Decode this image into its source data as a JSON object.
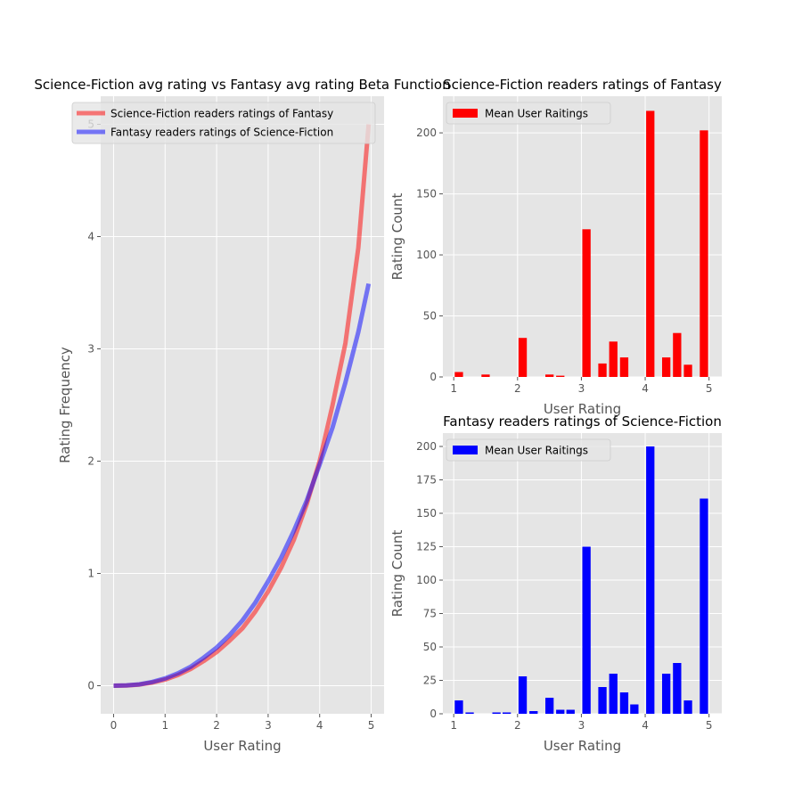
{
  "chart_data": [
    {
      "type": "line",
      "title": "Science-Fiction avg rating vs Fantasy avg rating Beta Function",
      "xlabel": "User Rating",
      "ylabel": "Rating Frequency",
      "xlim": [
        -0.25,
        5.25
      ],
      "ylim": [
        -0.25,
        5.25
      ],
      "xticks": [
        0,
        1,
        2,
        3,
        4,
        5
      ],
      "yticks": [
        0,
        1,
        2,
        3,
        4,
        5
      ],
      "grid": true,
      "legend": "top-right",
      "x": [
        0,
        0.25,
        0.5,
        0.75,
        1,
        1.25,
        1.5,
        1.75,
        2,
        2.25,
        2.5,
        2.75,
        3,
        3.25,
        3.5,
        3.75,
        4,
        4.25,
        4.5,
        4.75,
        4.95
      ],
      "series": [
        {
          "name": "Science-Fiction readers ratings of Fantasy",
          "color": "#ff0000",
          "values": [
            0,
            0.002,
            0.01,
            0.028,
            0.055,
            0.095,
            0.15,
            0.22,
            0.3,
            0.4,
            0.51,
            0.66,
            0.84,
            1.05,
            1.3,
            1.62,
            2.0,
            2.5,
            3.05,
            3.9,
            5.0
          ]
        },
        {
          "name": "Fantasy readers ratings of Science-Fiction",
          "color": "#0000ff",
          "values": [
            0,
            0.003,
            0.012,
            0.033,
            0.065,
            0.11,
            0.17,
            0.25,
            0.34,
            0.45,
            0.58,
            0.74,
            0.93,
            1.14,
            1.38,
            1.65,
            1.97,
            2.3,
            2.7,
            3.15,
            3.58
          ]
        }
      ]
    },
    {
      "type": "bar",
      "title": "Science-Fiction readers ratings of Fantasy",
      "xlabel": "User Rating",
      "ylabel": "Rating Count",
      "xlim": [
        0.83,
        5.2
      ],
      "ylim": [
        0,
        230
      ],
      "xticks": [
        1,
        2,
        3,
        4,
        5
      ],
      "yticks": [
        0,
        50,
        100,
        150,
        200
      ],
      "grid": true,
      "legend": "top-left",
      "series": [
        {
          "name": "Mean User Raitings",
          "color": "#ff0000"
        }
      ],
      "x": [
        1.08,
        1.5,
        2.08,
        2.5,
        2.67,
        3.08,
        3.33,
        3.5,
        3.67,
        4.08,
        4.33,
        4.5,
        4.67,
        4.92
      ],
      "values": [
        4,
        2,
        32,
        2,
        1,
        121,
        11,
        29,
        16,
        218,
        16,
        36,
        10,
        202
      ]
    },
    {
      "type": "bar",
      "title": "Fantasy readers ratings of Science-Fiction",
      "xlabel": "User Rating",
      "ylabel": "Rating Count",
      "xlim": [
        0.83,
        5.2
      ],
      "ylim": [
        0,
        210
      ],
      "xticks": [
        1,
        2,
        3,
        4,
        5
      ],
      "yticks": [
        0,
        25,
        50,
        75,
        100,
        125,
        150,
        175,
        200
      ],
      "grid": true,
      "legend": "top-left",
      "series": [
        {
          "name": "Mean User Raitings",
          "color": "#0000ff"
        }
      ],
      "x": [
        1.08,
        1.25,
        1.67,
        1.83,
        2.08,
        2.25,
        2.5,
        2.67,
        2.83,
        3.08,
        3.33,
        3.5,
        3.67,
        3.83,
        4.08,
        4.33,
        4.5,
        4.67,
        4.92
      ],
      "values": [
        10,
        1,
        1,
        1,
        28,
        2,
        12,
        3,
        3,
        125,
        20,
        30,
        16,
        7,
        200,
        30,
        38,
        10,
        161
      ]
    }
  ]
}
